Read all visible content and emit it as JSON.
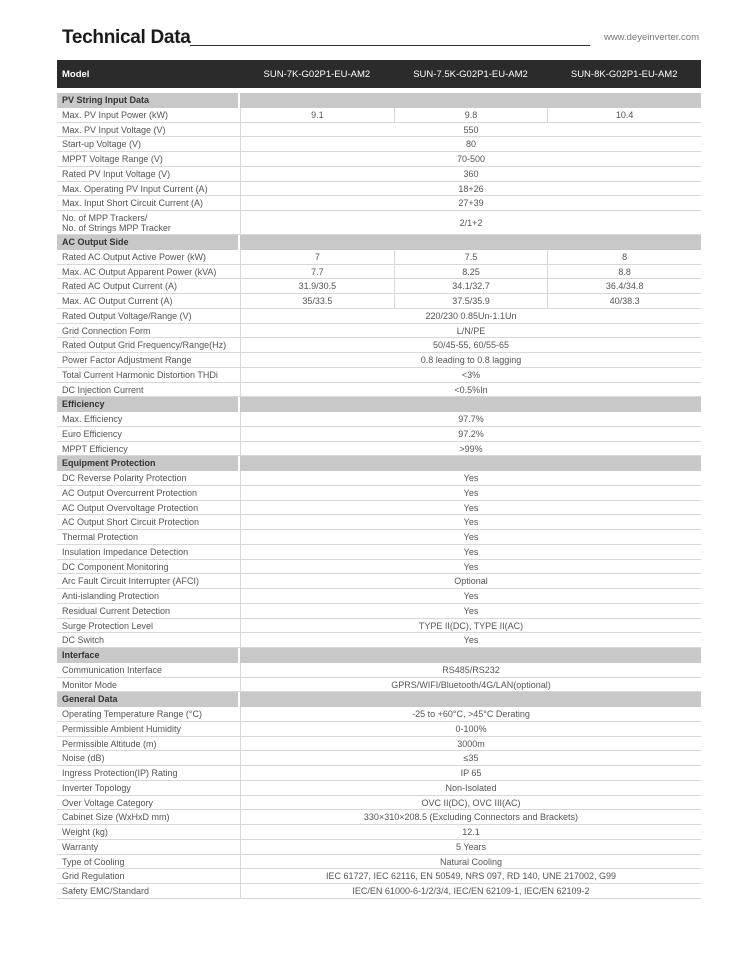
{
  "header": {
    "title": "Technical Data",
    "website": "www.deyeinverter.com"
  },
  "table": {
    "model_label": "Model",
    "models": [
      "SUN-7K-G02P1-EU-AM2",
      "SUN-7.5K-G02P1-EU-AM2",
      "SUN-8K-G02P1-EU-AM2"
    ],
    "sections": [
      {
        "title": "PV String Input Data",
        "rows": [
          {
            "label": "Max. PV Input Power (kW)",
            "values": [
              "9.1",
              "9.8",
              "10.4"
            ]
          },
          {
            "label": "Max. PV Input Voltage (V)",
            "values": [
              "550"
            ]
          },
          {
            "label": "Start-up Voltage (V)",
            "values": [
              "80"
            ]
          },
          {
            "label": "MPPT Voltage Range (V)",
            "values": [
              "70-500"
            ]
          },
          {
            "label": "Rated PV Input Voltage (V)",
            "values": [
              "360"
            ]
          },
          {
            "label": "Max. Operating PV Input Current (A)",
            "values": [
              "18+26"
            ]
          },
          {
            "label": "Max. Input Short Circuit Current (A)",
            "values": [
              "27+39"
            ]
          },
          {
            "label": "No. of MPP Trackers/\nNo. of Strings MPP Tracker",
            "values": [
              "2/1+2"
            ]
          }
        ]
      },
      {
        "title": "AC Output Side",
        "rows": [
          {
            "label": "Rated AC Output Active Power (kW)",
            "values": [
              "7",
              "7.5",
              "8"
            ]
          },
          {
            "label": "Max. AC Output Apparent Power (kVA)",
            "values": [
              "7.7",
              "8.25",
              "8.8"
            ]
          },
          {
            "label": "Rated AC Output Current (A)",
            "values": [
              "31.9/30.5",
              "34.1/32.7",
              "36.4/34.8"
            ]
          },
          {
            "label": "Max. AC Output Current (A)",
            "values": [
              "35/33.5",
              "37.5/35.9",
              "40/38.3"
            ]
          },
          {
            "label": "Rated Output Voltage/Range (V)",
            "values": [
              "220/230  0.85Un-1.1Un"
            ]
          },
          {
            "label": "Grid Connection Form",
            "values": [
              "L/N/PE"
            ]
          },
          {
            "label": "Rated Output Grid Frequency/Range(Hz)",
            "values": [
              "50/45-55, 60/55-65"
            ]
          },
          {
            "label": "Power Factor Adjustment Range",
            "values": [
              "0.8 leading to 0.8 lagging"
            ]
          },
          {
            "label": "Total Current Harmonic Distortion THDi",
            "values": [
              "<3%"
            ]
          },
          {
            "label": "DC Injection Current",
            "values": [
              "<0.5%In"
            ]
          }
        ]
      },
      {
        "title": "Efficiency",
        "rows": [
          {
            "label": "Max. Efficiency",
            "values": [
              "97.7%"
            ]
          },
          {
            "label": "Euro Efficiency",
            "values": [
              "97.2%"
            ]
          },
          {
            "label": "MPPT Efficiency",
            "values": [
              ">99%"
            ]
          }
        ]
      },
      {
        "title": "Equipment Protection",
        "rows": [
          {
            "label": "DC Reverse Polarity Protection",
            "values": [
              "Yes"
            ]
          },
          {
            "label": "AC Output Overcurrent Protection",
            "values": [
              "Yes"
            ]
          },
          {
            "label": "AC Output Overvoltage Protection",
            "values": [
              "Yes"
            ]
          },
          {
            "label": "AC Output Short Circuit Protection",
            "values": [
              "Yes"
            ]
          },
          {
            "label": "Thermal Protection",
            "values": [
              "Yes"
            ]
          },
          {
            "label": "Insulation Impedance Detection",
            "values": [
              "Yes"
            ]
          },
          {
            "label": "DC Component Monitoring",
            "values": [
              "Yes"
            ]
          },
          {
            "label": "Arc Fault Circuit Interrupter (AFCI)",
            "values": [
              "Optional"
            ]
          },
          {
            "label": "Anti-islanding Protection",
            "values": [
              "Yes"
            ]
          },
          {
            "label": "Residual Current Detection",
            "values": [
              "Yes"
            ]
          },
          {
            "label": "Surge Protection Level",
            "values": [
              "TYPE II(DC), TYPE II(AC)"
            ]
          },
          {
            "label": "DC  Switch",
            "values": [
              "Yes"
            ]
          }
        ]
      },
      {
        "title": "Interface",
        "rows": [
          {
            "label": "Communication Interface",
            "values": [
              "RS485/RS232"
            ]
          },
          {
            "label": "Monitor Mode",
            "values": [
              "GPRS/WIFI/Bluetooth/4G/LAN(optional)"
            ]
          }
        ]
      },
      {
        "title": "General Data",
        "rows": [
          {
            "label": "Operating Temperature Range (°C)",
            "values": [
              "-25 to +60°C, >45°C Derating"
            ]
          },
          {
            "label": "Permissible Ambient Humidity",
            "values": [
              "0-100%"
            ]
          },
          {
            "label": "Permissible Altitude (m)",
            "values": [
              "3000m"
            ]
          },
          {
            "label": "Noise (dB)",
            "values": [
              "≤35"
            ]
          },
          {
            "label": "Ingress Protection(IP) Rating",
            "values": [
              "IP 65"
            ]
          },
          {
            "label": "Inverter Topology",
            "values": [
              "Non-Isolated"
            ]
          },
          {
            "label": "Over Voltage Category",
            "values": [
              "OVC II(DC), OVC III(AC)"
            ]
          },
          {
            "label": "Cabinet Size (WxHxD mm)",
            "values": [
              "330×310×208.5 (Excluding Connectors and Brackets)"
            ]
          },
          {
            "label": "Weight (kg)",
            "values": [
              "12.1"
            ]
          },
          {
            "label": "Warranty",
            "values": [
              "5 Years"
            ]
          },
          {
            "label": "Type of Cooling",
            "values": [
              "Natural Cooling"
            ]
          },
          {
            "label": "Grid Regulation",
            "values": [
              "IEC 61727, IEC 62116, EN 50549, NRS 097, RD 140, UNE 217002, G99"
            ]
          },
          {
            "label": "Safety EMC/Standard",
            "values": [
              "IEC/EN 61000-6-1/2/3/4, IEC/EN 62109-1, IEC/EN 62109-2"
            ]
          }
        ]
      }
    ]
  }
}
